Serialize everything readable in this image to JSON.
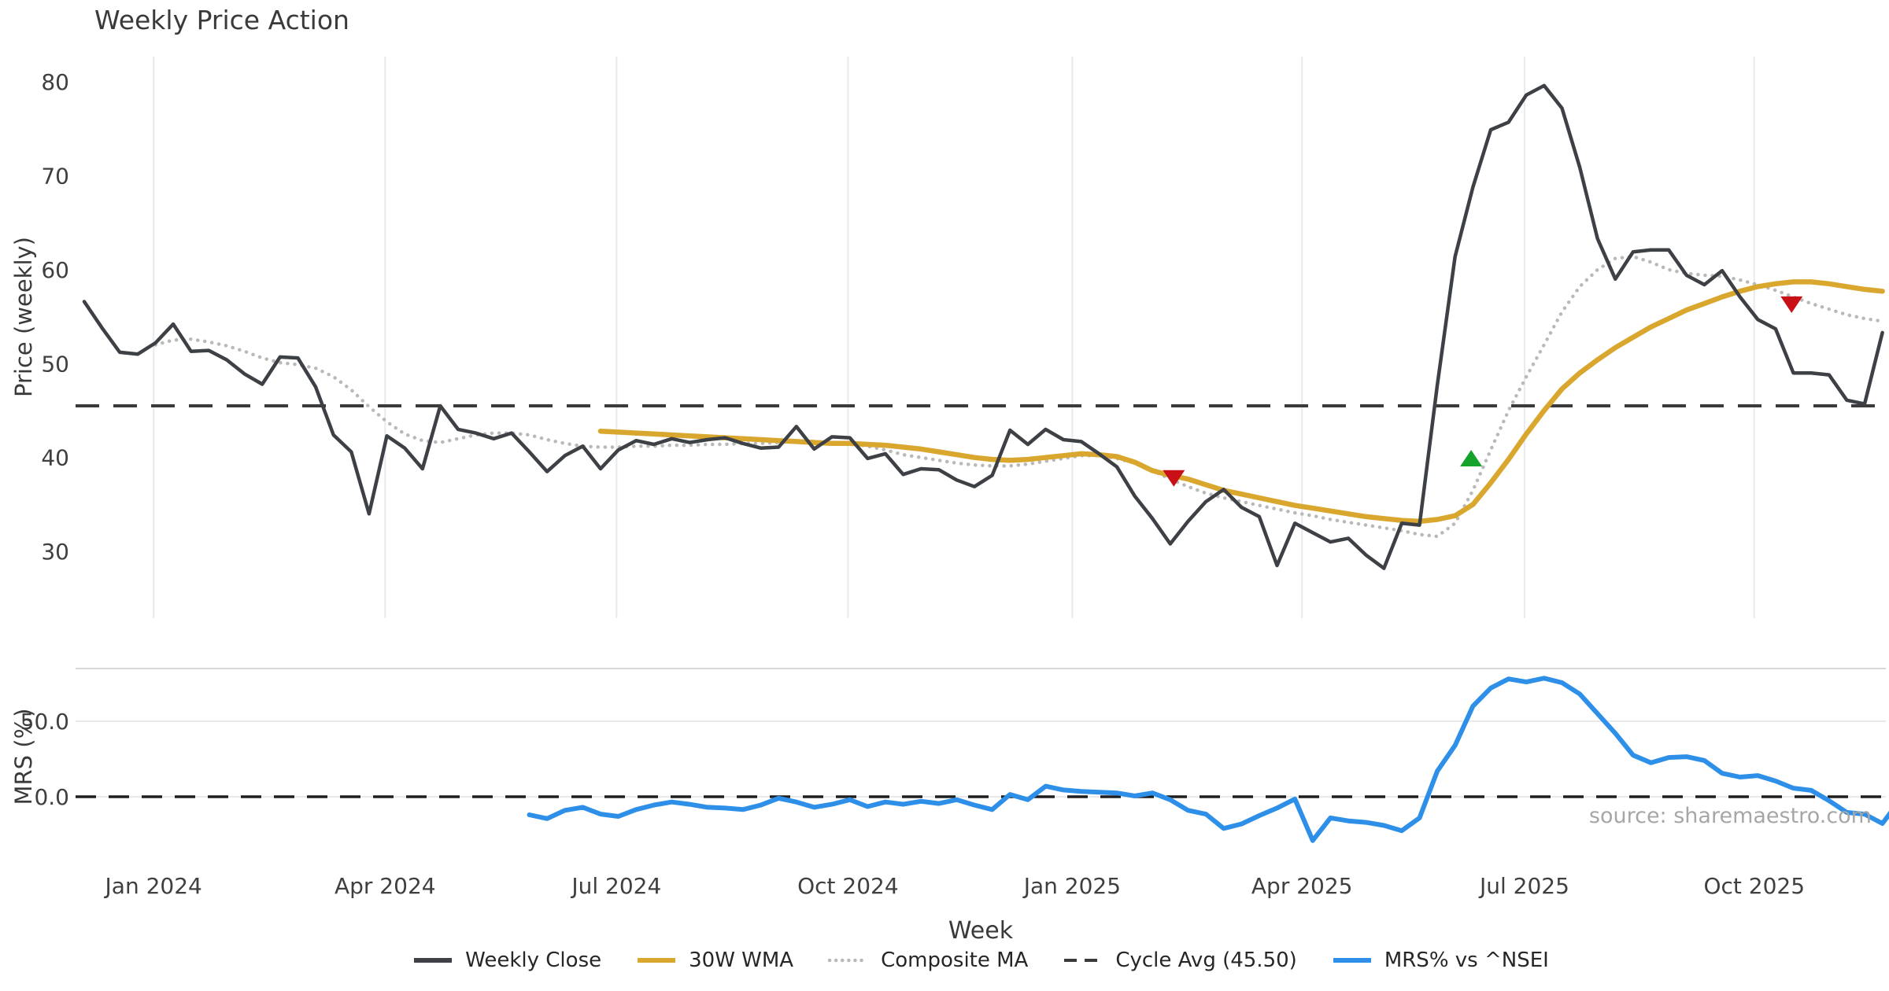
{
  "title": "Weekly Price Action",
  "xlabel": "Week",
  "source": "source: sharemaestro.com",
  "price_panel": {
    "ylabel": "Price (weekly)",
    "yticks": [
      80,
      70,
      60,
      50,
      40,
      30
    ],
    "cycle_avg": 45.5
  },
  "mrs_panel": {
    "ylabel": "MRS (%)",
    "ytick_labels": [
      "50.0",
      "0.0"
    ],
    "ytick_values": [
      50,
      0
    ],
    "zero_line": 0
  },
  "legend": [
    {
      "label": "Weekly Close",
      "color": "#3d4045",
      "style": "solid"
    },
    {
      "label": "30W WMA",
      "color": "#d9a62e",
      "style": "solid"
    },
    {
      "label": "Composite MA",
      "color": "#b9b9b9",
      "style": "dotted"
    },
    {
      "label": "Cycle Avg (45.50)",
      "color": "#3a3a3a",
      "style": "dashed"
    },
    {
      "label": "MRS% vs ^NSEI",
      "color": "#2e8fe8",
      "style": "solid"
    }
  ],
  "chart_data": {
    "type": "line",
    "title": "Weekly Price Action",
    "xlabel": "Week",
    "x_unit": "week_index",
    "x_ticks": [
      {
        "label": "Jan 2024",
        "week": 3.9
      },
      {
        "label": "Apr 2024",
        "week": 16.9
      },
      {
        "label": "Jul 2024",
        "week": 29.9
      },
      {
        "label": "Oct 2024",
        "week": 42.9
      },
      {
        "label": "Jan 2025",
        "week": 55.5
      },
      {
        "label": "Apr 2025",
        "week": 68.4
      },
      {
        "label": "Jul 2025",
        "week": 80.9
      },
      {
        "label": "Oct 2025",
        "week": 93.8
      }
    ],
    "panels": [
      {
        "name": "price",
        "ylabel": "Price (weekly)",
        "ylim": [
          26,
          82
        ],
        "yticks": [
          30,
          40,
          50,
          60,
          70,
          80
        ],
        "grid": "vertical-quarter-lines",
        "series": [
          {
            "name": "Weekly Close",
            "color": "#3d4045",
            "style": "solid",
            "width": 4.5,
            "start_week": 0,
            "values": [
              56.6,
              53.8,
              51.2,
              51.0,
              52.2,
              54.2,
              51.3,
              51.4,
              50.4,
              48.9,
              47.8,
              50.7,
              50.6,
              47.5,
              42.4,
              40.6,
              34.0,
              42.3,
              41.0,
              38.8,
              45.5,
              43.0,
              42.6,
              42.0,
              42.6,
              40.6,
              38.5,
              40.2,
              41.2,
              38.8,
              40.8,
              41.8,
              41.4,
              42.0,
              41.6,
              41.9,
              42.1,
              41.5,
              41.0,
              41.1,
              43.3,
              40.9,
              42.2,
              42.1,
              39.9,
              40.4,
              38.2,
              38.8,
              38.7,
              37.6,
              36.9,
              38.1,
              42.9,
              41.4,
              43.0,
              41.9,
              41.7,
              40.4,
              39.0,
              35.9,
              33.5,
              30.8,
              33.2,
              35.3,
              36.6,
              34.7,
              33.7,
              28.5,
              33.0,
              32.0,
              31.0,
              31.4,
              29.6,
              28.2,
              33.0,
              32.8,
              47.7,
              61.4,
              68.8,
              74.9,
              75.7,
              78.6,
              79.6,
              77.2,
              70.9,
              63.3,
              59.0,
              61.9,
              62.1,
              62.1,
              59.4,
              58.4,
              59.9,
              57.1,
              54.7,
              53.7,
              49.0,
              49.0,
              48.8,
              46.1,
              45.7,
              53.3
            ]
          },
          {
            "name": "30W WMA",
            "color": "#d9a62e",
            "style": "solid",
            "width": 6.5,
            "start_week": 29,
            "values": [
              42.8,
              42.7,
              42.6,
              42.5,
              42.4,
              42.3,
              42.2,
              42.1,
              42.0,
              41.9,
              41.8,
              41.7,
              41.6,
              41.5,
              41.5,
              41.4,
              41.3,
              41.1,
              40.9,
              40.6,
              40.3,
              40.0,
              39.8,
              39.7,
              39.8,
              40.0,
              40.2,
              40.4,
              40.3,
              40.1,
              39.5,
              38.6,
              38.1,
              37.7,
              37.1,
              36.5,
              36.1,
              35.7,
              35.3,
              34.9,
              34.6,
              34.3,
              34.0,
              33.7,
              33.5,
              33.3,
              33.2,
              33.4,
              33.8,
              35.0,
              37.3,
              39.8,
              42.5,
              45.0,
              47.3,
              49.0,
              50.4,
              51.7,
              52.8,
              53.9,
              54.8,
              55.7,
              56.4,
              57.1,
              57.7,
              58.2,
              58.5,
              58.7,
              58.7,
              58.5,
              58.2,
              57.9,
              57.7
            ]
          },
          {
            "name": "Composite MA",
            "color": "#b9b9b9",
            "style": "dotted",
            "width": 4.5,
            "start_week": 4,
            "values": [
              52.0,
              52.5,
              52.6,
              52.3,
              51.9,
              51.3,
              50.6,
              50.1,
              49.9,
              49.5,
              48.6,
              47.2,
              45.4,
              43.8,
              42.5,
              41.8,
              41.6,
              42.0,
              42.4,
              42.6,
              42.6,
              42.4,
              41.9,
              41.5,
              41.2,
              41.1,
              41.1,
              41.2,
              41.2,
              41.3,
              41.3,
              41.4,
              41.4,
              41.5,
              41.5,
              41.6,
              41.7,
              41.7,
              41.6,
              41.5,
              41.2,
              40.8,
              40.3,
              40.0,
              39.7,
              39.4,
              39.2,
              39.1,
              39.1,
              39.3,
              39.6,
              39.9,
              40.2,
              40.2,
              39.9,
              39.4,
              38.6,
              37.7,
              36.9,
              36.2,
              35.7,
              35.3,
              34.9,
              34.5,
              34.1,
              33.8,
              33.4,
              33.1,
              32.8,
              32.5,
              32.2,
              31.8,
              31.6,
              33.0,
              36.5,
              40.8,
              45.0,
              48.6,
              52.0,
              55.5,
              58.2,
              60.0,
              61.2,
              61.4,
              60.8,
              60.0,
              59.6,
              59.4,
              59.3,
              58.9,
              58.4,
              57.8,
              57.1,
              56.4,
              55.8,
              55.2,
              54.8,
              54.5
            ]
          },
          {
            "name": "Cycle Avg",
            "color": "#3b3b3b",
            "style": "dashed",
            "width": 4,
            "const_value": 45.5
          }
        ],
        "markers": [
          {
            "type": "triangle-down",
            "color": "#c81016",
            "week": 61.2,
            "value": 37.9
          },
          {
            "type": "triangle-up",
            "color": "#16a32a",
            "week": 77.9,
            "value": 39.8
          },
          {
            "type": "triangle-down",
            "color": "#c81016",
            "week": 95.9,
            "value": 56.4
          }
        ]
      },
      {
        "name": "mrs",
        "ylabel": "MRS (%)",
        "ylim": [
          -40,
          85
        ],
        "yticks": [
          0,
          50
        ],
        "series": [
          {
            "name": "MRS% vs ^NSEI",
            "color": "#2e8fe8",
            "style": "solid",
            "width": 6,
            "start_week": 25,
            "values": [
              -12,
              -14.5,
              -9,
              -7,
              -11.5,
              -13,
              -8.5,
              -5.5,
              -3.5,
              -5,
              -7,
              -7.5,
              -8.5,
              -5.5,
              -1,
              -3.5,
              -7,
              -5,
              -2,
              -6.5,
              -3.5,
              -5,
              -3,
              -4.5,
              -2,
              -5.5,
              -8.5,
              1.5,
              -2,
              7,
              4.5,
              3.5,
              3,
              2.5,
              0.5,
              2.5,
              -2,
              -9,
              -11.5,
              -21,
              -18,
              -12.5,
              -7.5,
              -1.5,
              -29,
              -14,
              -16,
              -17,
              -19,
              -22.5,
              -14,
              17,
              34,
              60,
              72,
              78,
              76,
              78.5,
              75.5,
              68,
              55,
              42,
              27.5,
              22.5,
              26,
              26.5,
              24,
              15.5,
              13,
              14,
              10.4,
              5.7,
              4.2,
              -2.6,
              -10.4,
              -11.5,
              -17.7,
              -2.1
            ]
          },
          {
            "name": "Zero line",
            "color": "#1f1f1f",
            "style": "dashed",
            "width": 3.5,
            "const_value": 0
          }
        ]
      }
    ]
  }
}
